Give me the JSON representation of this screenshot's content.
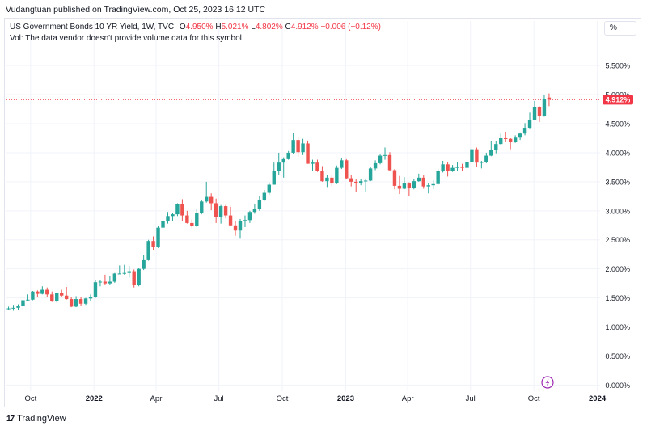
{
  "header": {
    "publish_line": "Vudangtuan published on TradingView.com, Oct 25, 2023 16:12 UTC"
  },
  "legend": {
    "symbol": "US Government Bonds 10 YR Yield, 1W, TVC",
    "o_label": "O",
    "o_value": "4.950%",
    "h_label": "H",
    "h_value": "5.021%",
    "l_label": "L",
    "l_value": "4.802%",
    "c_label": "C",
    "c_value": "4.912%",
    "change": "−0.006 (−0.12%)",
    "volume_note": "Vol: The data vendor doesn't provide volume data for this symbol."
  },
  "scale_button": "%",
  "footer": {
    "brand": "TradingView"
  },
  "colors": {
    "up": "#26a69a",
    "down": "#ef5350",
    "grid": "#f0f3fa",
    "price_line": "#f23645"
  },
  "chart_data": {
    "type": "candlestick",
    "title": "US Government Bonds 10 YR Yield, 1W, TVC",
    "ylabel": "%",
    "ylim": [
      -0.05,
      5.85
    ],
    "y_ticks": [
      "0.000%",
      "0.500%",
      "1.000%",
      "1.500%",
      "2.000%",
      "2.500%",
      "3.000%",
      "3.500%",
      "4.000%",
      "4.500%",
      "5.000%",
      "5.500%"
    ],
    "y_tick_values": [
      0,
      0.5,
      1,
      1.5,
      2,
      2.5,
      3,
      3.5,
      4,
      4.5,
      5,
      5.5
    ],
    "x_ticks": [
      "Oct",
      "2022",
      "Apr",
      "Jul",
      "Oct",
      "2023",
      "Apr",
      "Jul",
      "Oct",
      "2024"
    ],
    "x_tick_dates": [
      "2021-10-01",
      "2022-01-01",
      "2022-04-01",
      "2022-07-01",
      "2022-10-01",
      "2023-01-01",
      "2023-04-01",
      "2023-07-01",
      "2023-10-01",
      "2024-01-01"
    ],
    "x_range": [
      "2021-08-27",
      "2024-01-05"
    ],
    "last_price": 4.912,
    "last_price_label": "4.912%",
    "candles": [
      {
        "date": "2021-08-30",
        "o": 1.31,
        "h": 1.35,
        "l": 1.29,
        "c": 1.32
      },
      {
        "date": "2021-09-06",
        "o": 1.32,
        "h": 1.38,
        "l": 1.28,
        "c": 1.33
      },
      {
        "date": "2021-09-13",
        "o": 1.33,
        "h": 1.39,
        "l": 1.29,
        "c": 1.36
      },
      {
        "date": "2021-09-20",
        "o": 1.36,
        "h": 1.47,
        "l": 1.3,
        "c": 1.46
      },
      {
        "date": "2021-09-27",
        "o": 1.46,
        "h": 1.56,
        "l": 1.45,
        "c": 1.47
      },
      {
        "date": "2021-10-04",
        "o": 1.47,
        "h": 1.62,
        "l": 1.46,
        "c": 1.61
      },
      {
        "date": "2021-10-11",
        "o": 1.61,
        "h": 1.63,
        "l": 1.51,
        "c": 1.57
      },
      {
        "date": "2021-10-18",
        "o": 1.57,
        "h": 1.7,
        "l": 1.56,
        "c": 1.64
      },
      {
        "date": "2021-10-25",
        "o": 1.64,
        "h": 1.68,
        "l": 1.52,
        "c": 1.56
      },
      {
        "date": "2021-11-01",
        "o": 1.56,
        "h": 1.61,
        "l": 1.43,
        "c": 1.45
      },
      {
        "date": "2021-11-08",
        "o": 1.45,
        "h": 1.58,
        "l": 1.42,
        "c": 1.58
      },
      {
        "date": "2021-11-15",
        "o": 1.58,
        "h": 1.64,
        "l": 1.52,
        "c": 1.54
      },
      {
        "date": "2021-11-22",
        "o": 1.54,
        "h": 1.69,
        "l": 1.47,
        "c": 1.48
      },
      {
        "date": "2021-11-29",
        "o": 1.48,
        "h": 1.51,
        "l": 1.34,
        "c": 1.35
      },
      {
        "date": "2021-12-06",
        "o": 1.35,
        "h": 1.53,
        "l": 1.34,
        "c": 1.48
      },
      {
        "date": "2021-12-13",
        "o": 1.48,
        "h": 1.51,
        "l": 1.36,
        "c": 1.4
      },
      {
        "date": "2021-12-20",
        "o": 1.4,
        "h": 1.5,
        "l": 1.38,
        "c": 1.49
      },
      {
        "date": "2021-12-27",
        "o": 1.49,
        "h": 1.56,
        "l": 1.44,
        "c": 1.51
      },
      {
        "date": "2022-01-03",
        "o": 1.51,
        "h": 1.8,
        "l": 1.5,
        "c": 1.77
      },
      {
        "date": "2022-01-10",
        "o": 1.77,
        "h": 1.81,
        "l": 1.7,
        "c": 1.78
      },
      {
        "date": "2022-01-17",
        "o": 1.78,
        "h": 1.9,
        "l": 1.73,
        "c": 1.75
      },
      {
        "date": "2022-01-24",
        "o": 1.75,
        "h": 1.87,
        "l": 1.72,
        "c": 1.78
      },
      {
        "date": "2022-01-31",
        "o": 1.78,
        "h": 1.93,
        "l": 1.76,
        "c": 1.92
      },
      {
        "date": "2022-02-07",
        "o": 1.92,
        "h": 2.06,
        "l": 1.91,
        "c": 1.92
      },
      {
        "date": "2022-02-14",
        "o": 1.92,
        "h": 2.07,
        "l": 1.9,
        "c": 1.93
      },
      {
        "date": "2022-02-21",
        "o": 1.93,
        "h": 2.05,
        "l": 1.85,
        "c": 1.96
      },
      {
        "date": "2022-02-28",
        "o": 1.96,
        "h": 1.99,
        "l": 1.68,
        "c": 1.73
      },
      {
        "date": "2022-03-07",
        "o": 1.73,
        "h": 2.02,
        "l": 1.7,
        "c": 2.0
      },
      {
        "date": "2022-03-14",
        "o": 2.0,
        "h": 2.24,
        "l": 1.98,
        "c": 2.15
      },
      {
        "date": "2022-03-21",
        "o": 2.15,
        "h": 2.5,
        "l": 2.14,
        "c": 2.48
      },
      {
        "date": "2022-03-28",
        "o": 2.48,
        "h": 2.56,
        "l": 2.33,
        "c": 2.38
      },
      {
        "date": "2022-04-04",
        "o": 2.38,
        "h": 2.74,
        "l": 2.36,
        "c": 2.71
      },
      {
        "date": "2022-04-11",
        "o": 2.71,
        "h": 2.88,
        "l": 2.68,
        "c": 2.83
      },
      {
        "date": "2022-04-18",
        "o": 2.83,
        "h": 2.98,
        "l": 2.78,
        "c": 2.91
      },
      {
        "date": "2022-04-25",
        "o": 2.91,
        "h": 2.96,
        "l": 2.82,
        "c": 2.94
      },
      {
        "date": "2022-05-02",
        "o": 2.94,
        "h": 3.13,
        "l": 2.91,
        "c": 3.12
      },
      {
        "date": "2022-05-09",
        "o": 3.12,
        "h": 3.2,
        "l": 2.83,
        "c": 2.92
      },
      {
        "date": "2022-05-16",
        "o": 2.92,
        "h": 3.0,
        "l": 2.78,
        "c": 2.79
      },
      {
        "date": "2022-05-23",
        "o": 2.79,
        "h": 2.85,
        "l": 2.71,
        "c": 2.74
      },
      {
        "date": "2022-05-30",
        "o": 2.74,
        "h": 3.04,
        "l": 2.72,
        "c": 2.96
      },
      {
        "date": "2022-06-06",
        "o": 2.96,
        "h": 3.18,
        "l": 2.94,
        "c": 3.16
      },
      {
        "date": "2022-06-13",
        "o": 3.16,
        "h": 3.5,
        "l": 3.14,
        "c": 3.24
      },
      {
        "date": "2022-06-20",
        "o": 3.24,
        "h": 3.3,
        "l": 3.01,
        "c": 3.13
      },
      {
        "date": "2022-06-27",
        "o": 3.13,
        "h": 3.21,
        "l": 2.79,
        "c": 2.89
      },
      {
        "date": "2022-07-04",
        "o": 2.89,
        "h": 3.1,
        "l": 2.78,
        "c": 3.08
      },
      {
        "date": "2022-07-11",
        "o": 3.08,
        "h": 3.1,
        "l": 2.87,
        "c": 2.92
      },
      {
        "date": "2022-07-18",
        "o": 2.92,
        "h": 3.07,
        "l": 2.75,
        "c": 2.75
      },
      {
        "date": "2022-07-25",
        "o": 2.75,
        "h": 2.83,
        "l": 2.57,
        "c": 2.66
      },
      {
        "date": "2022-08-01",
        "o": 2.66,
        "h": 2.86,
        "l": 2.52,
        "c": 2.83
      },
      {
        "date": "2022-08-08",
        "o": 2.83,
        "h": 2.92,
        "l": 2.72,
        "c": 2.84
      },
      {
        "date": "2022-08-15",
        "o": 2.84,
        "h": 3.0,
        "l": 2.79,
        "c": 2.98
      },
      {
        "date": "2022-08-22",
        "o": 2.98,
        "h": 3.11,
        "l": 2.95,
        "c": 3.03
      },
      {
        "date": "2022-08-29",
        "o": 3.03,
        "h": 3.26,
        "l": 3.0,
        "c": 3.19
      },
      {
        "date": "2022-09-05",
        "o": 3.19,
        "h": 3.36,
        "l": 3.17,
        "c": 3.31
      },
      {
        "date": "2022-09-12",
        "o": 3.31,
        "h": 3.49,
        "l": 3.28,
        "c": 3.45
      },
      {
        "date": "2022-09-19",
        "o": 3.45,
        "h": 3.83,
        "l": 3.45,
        "c": 3.68
      },
      {
        "date": "2022-09-26",
        "o": 3.68,
        "h": 4.0,
        "l": 3.61,
        "c": 3.83
      },
      {
        "date": "2022-10-03",
        "o": 3.83,
        "h": 3.92,
        "l": 3.57,
        "c": 3.89
      },
      {
        "date": "2022-10-10",
        "o": 3.89,
        "h": 4.03,
        "l": 3.88,
        "c": 4.0
      },
      {
        "date": "2022-10-17",
        "o": 4.0,
        "h": 4.34,
        "l": 3.98,
        "c": 4.22
      },
      {
        "date": "2022-10-24",
        "o": 4.22,
        "h": 4.26,
        "l": 3.93,
        "c": 4.01
      },
      {
        "date": "2022-10-31",
        "o": 4.01,
        "h": 4.24,
        "l": 3.96,
        "c": 4.16
      },
      {
        "date": "2022-11-07",
        "o": 4.16,
        "h": 4.21,
        "l": 3.81,
        "c": 3.81
      },
      {
        "date": "2022-11-14",
        "o": 3.81,
        "h": 3.88,
        "l": 3.68,
        "c": 3.83
      },
      {
        "date": "2022-11-21",
        "o": 3.83,
        "h": 3.88,
        "l": 3.67,
        "c": 3.68
      },
      {
        "date": "2022-11-28",
        "o": 3.68,
        "h": 3.77,
        "l": 3.5,
        "c": 3.51
      },
      {
        "date": "2022-12-05",
        "o": 3.51,
        "h": 3.62,
        "l": 3.41,
        "c": 3.57
      },
      {
        "date": "2022-12-12",
        "o": 3.57,
        "h": 3.61,
        "l": 3.43,
        "c": 3.47
      },
      {
        "date": "2022-12-19",
        "o": 3.47,
        "h": 3.78,
        "l": 3.46,
        "c": 3.74
      },
      {
        "date": "2022-12-26",
        "o": 3.74,
        "h": 3.91,
        "l": 3.72,
        "c": 3.87
      },
      {
        "date": "2023-01-02",
        "o": 3.87,
        "h": 3.89,
        "l": 3.54,
        "c": 3.56
      },
      {
        "date": "2023-01-09",
        "o": 3.56,
        "h": 3.62,
        "l": 3.42,
        "c": 3.5
      },
      {
        "date": "2023-01-16",
        "o": 3.5,
        "h": 3.54,
        "l": 3.32,
        "c": 3.48
      },
      {
        "date": "2023-01-23",
        "o": 3.48,
        "h": 3.55,
        "l": 3.44,
        "c": 3.51
      },
      {
        "date": "2023-01-30",
        "o": 3.51,
        "h": 3.54,
        "l": 3.33,
        "c": 3.52
      },
      {
        "date": "2023-02-06",
        "o": 3.52,
        "h": 3.75,
        "l": 3.51,
        "c": 3.73
      },
      {
        "date": "2023-02-13",
        "o": 3.73,
        "h": 3.87,
        "l": 3.7,
        "c": 3.82
      },
      {
        "date": "2023-02-20",
        "o": 3.82,
        "h": 3.97,
        "l": 3.8,
        "c": 3.95
      },
      {
        "date": "2023-02-27",
        "o": 3.95,
        "h": 4.09,
        "l": 3.88,
        "c": 3.96
      },
      {
        "date": "2023-03-06",
        "o": 3.96,
        "h": 4.01,
        "l": 3.68,
        "c": 3.7
      },
      {
        "date": "2023-03-13",
        "o": 3.7,
        "h": 3.72,
        "l": 3.37,
        "c": 3.43
      },
      {
        "date": "2023-03-20",
        "o": 3.43,
        "h": 3.6,
        "l": 3.29,
        "c": 3.38
      },
      {
        "date": "2023-03-27",
        "o": 3.38,
        "h": 3.58,
        "l": 3.37,
        "c": 3.47
      },
      {
        "date": "2023-04-03",
        "o": 3.47,
        "h": 3.49,
        "l": 3.26,
        "c": 3.39
      },
      {
        "date": "2023-04-10",
        "o": 3.39,
        "h": 3.54,
        "l": 3.37,
        "c": 3.51
      },
      {
        "date": "2023-04-17",
        "o": 3.51,
        "h": 3.64,
        "l": 3.5,
        "c": 3.57
      },
      {
        "date": "2023-04-24",
        "o": 3.57,
        "h": 3.61,
        "l": 3.38,
        "c": 3.42
      },
      {
        "date": "2023-05-01",
        "o": 3.42,
        "h": 3.48,
        "l": 3.3,
        "c": 3.44
      },
      {
        "date": "2023-05-08",
        "o": 3.44,
        "h": 3.53,
        "l": 3.37,
        "c": 3.46
      },
      {
        "date": "2023-05-15",
        "o": 3.46,
        "h": 3.72,
        "l": 3.45,
        "c": 3.68
      },
      {
        "date": "2023-05-22",
        "o": 3.68,
        "h": 3.86,
        "l": 3.66,
        "c": 3.8
      },
      {
        "date": "2023-05-29",
        "o": 3.8,
        "h": 3.84,
        "l": 3.59,
        "c": 3.69
      },
      {
        "date": "2023-06-05",
        "o": 3.69,
        "h": 3.79,
        "l": 3.67,
        "c": 3.74
      },
      {
        "date": "2023-06-12",
        "o": 3.74,
        "h": 3.84,
        "l": 3.69,
        "c": 3.76
      },
      {
        "date": "2023-06-19",
        "o": 3.76,
        "h": 3.81,
        "l": 3.68,
        "c": 3.74
      },
      {
        "date": "2023-06-26",
        "o": 3.74,
        "h": 3.88,
        "l": 3.7,
        "c": 3.84
      },
      {
        "date": "2023-07-03",
        "o": 3.84,
        "h": 4.09,
        "l": 3.83,
        "c": 4.06
      },
      {
        "date": "2023-07-10",
        "o": 4.06,
        "h": 4.09,
        "l": 3.76,
        "c": 3.83
      },
      {
        "date": "2023-07-17",
        "o": 3.83,
        "h": 3.86,
        "l": 3.73,
        "c": 3.84
      },
      {
        "date": "2023-07-24",
        "o": 3.84,
        "h": 4.0,
        "l": 3.82,
        "c": 3.95
      },
      {
        "date": "2023-07-31",
        "o": 3.95,
        "h": 4.2,
        "l": 3.94,
        "c": 4.05
      },
      {
        "date": "2023-08-07",
        "o": 4.05,
        "h": 4.2,
        "l": 3.99,
        "c": 4.15
      },
      {
        "date": "2023-08-14",
        "o": 4.15,
        "h": 4.33,
        "l": 4.14,
        "c": 4.25
      },
      {
        "date": "2023-08-21",
        "o": 4.25,
        "h": 4.36,
        "l": 4.18,
        "c": 4.24
      },
      {
        "date": "2023-08-28",
        "o": 4.24,
        "h": 4.25,
        "l": 4.06,
        "c": 4.18
      },
      {
        "date": "2023-09-04",
        "o": 4.18,
        "h": 4.3,
        "l": 4.17,
        "c": 4.26
      },
      {
        "date": "2023-09-11",
        "o": 4.26,
        "h": 4.35,
        "l": 4.22,
        "c": 4.33
      },
      {
        "date": "2023-09-18",
        "o": 4.33,
        "h": 4.51,
        "l": 4.3,
        "c": 4.43
      },
      {
        "date": "2023-09-25",
        "o": 4.43,
        "h": 4.69,
        "l": 4.42,
        "c": 4.57
      },
      {
        "date": "2023-10-02",
        "o": 4.57,
        "h": 4.89,
        "l": 4.56,
        "c": 4.78
      },
      {
        "date": "2023-10-09",
        "o": 4.78,
        "h": 4.8,
        "l": 4.53,
        "c": 4.63
      },
      {
        "date": "2023-10-16",
        "o": 4.63,
        "h": 5.0,
        "l": 4.62,
        "c": 4.92
      },
      {
        "date": "2023-10-23",
        "o": 4.95,
        "h": 5.021,
        "l": 4.802,
        "c": 4.912
      }
    ]
  }
}
